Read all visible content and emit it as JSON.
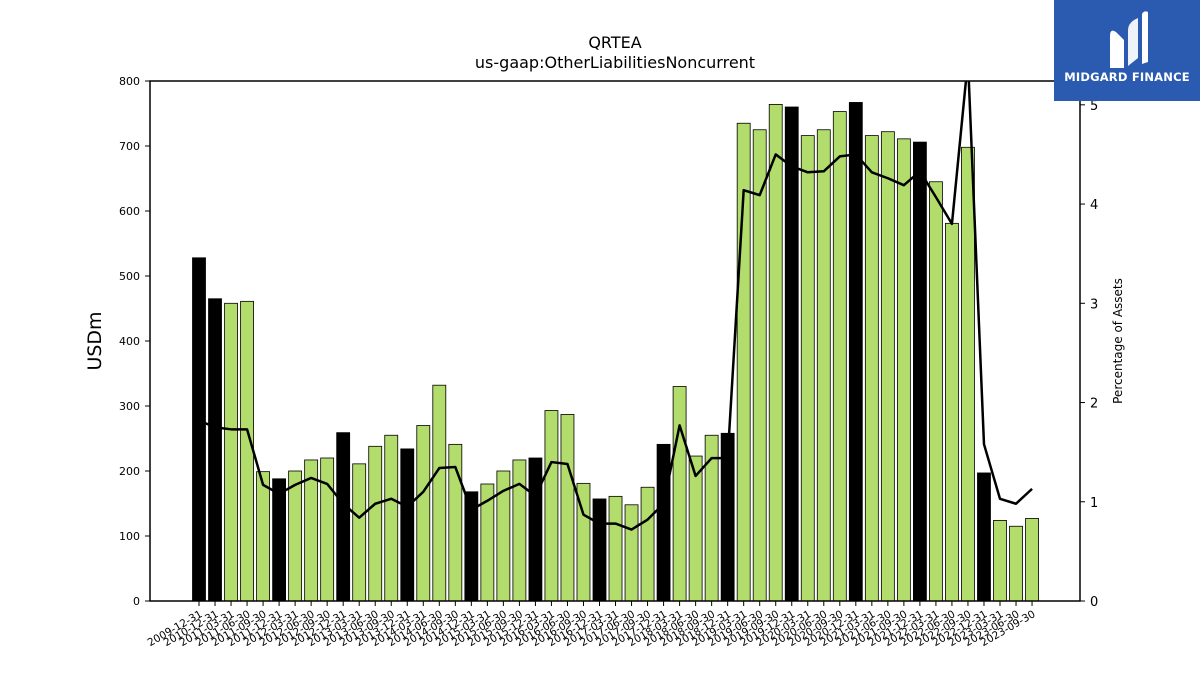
{
  "chart_data": {
    "type": "bar",
    "title": "QRTEA",
    "subtitle": "us-gaap:OtherLiabilitiesNoncurrent",
    "ylabel": "USDm",
    "y2label": "Percentage of Assets",
    "ylim": [
      0,
      800
    ],
    "y2lim": [
      0,
      5.24
    ],
    "yticks": [
      0,
      100,
      200,
      300,
      400,
      500,
      600,
      700,
      800
    ],
    "y2ticks": [
      0,
      1,
      2,
      3,
      4,
      5
    ],
    "x_tick_labels": [
      "2009-12-31",
      "2010-12-31",
      "2011-03-31",
      "2011-06-30",
      "2011-09-30",
      "2011-12-31",
      "2012-03-31",
      "2012-06-30",
      "2012-09-30",
      "2012-12-31",
      "2013-03-31",
      "2013-06-30",
      "2013-09-30",
      "2013-12-31",
      "2014-03-31",
      "2014-06-30",
      "2014-09-30",
      "2014-12-31",
      "2015-03-31",
      "2015-06-30",
      "2015-09-30",
      "2015-12-31",
      "2016-03-31",
      "2016-06-30",
      "2016-09-30",
      "2016-12-31",
      "2017-03-31",
      "2017-06-30",
      "2017-09-30",
      "2017-12-31",
      "2018-03-31",
      "2018-06-30",
      "2018-09-30",
      "2018-12-31",
      "2019-03-31",
      "2019-06-30",
      "2019-09-30",
      "2019-12-31",
      "2020-03-31",
      "2020-06-30",
      "2020-09-30",
      "2020-12-31",
      "2021-03-31",
      "2021-06-30",
      "2021-09-30",
      "2021-12-31",
      "2022-03-31",
      "2022-06-30",
      "2022-09-30",
      "2022-12-31",
      "2023-03-31",
      "2023-06-30",
      "2023-09-30"
    ],
    "annual_flags": [
      1,
      1,
      0,
      0,
      0,
      1,
      0,
      0,
      0,
      1,
      0,
      0,
      0,
      1,
      0,
      0,
      0,
      1,
      0,
      0,
      0,
      1,
      0,
      0,
      0,
      1,
      0,
      0,
      0,
      1,
      0,
      0,
      0,
      1,
      0,
      0,
      0,
      1,
      0,
      0,
      0,
      1,
      0,
      0,
      0,
      1,
      0,
      0,
      0,
      1,
      0,
      0,
      0
    ],
    "series": [
      {
        "name": "USDm",
        "values": [
          528,
          465,
          458,
          461,
          199,
          188,
          200,
          217,
          220,
          259,
          211,
          238,
          255,
          234,
          270,
          332,
          241,
          168,
          180,
          200,
          217,
          220,
          293,
          287,
          181,
          157,
          161,
          148,
          175,
          241,
          330,
          223,
          255,
          258,
          735,
          725,
          764,
          760,
          716,
          725,
          753,
          767,
          716,
          722,
          711,
          706,
          645,
          581,
          698,
          197,
          124,
          115,
          127
        ]
      },
      {
        "name": "Percentage of Assets",
        "values": [
          1.82,
          1.75,
          1.73,
          1.73,
          1.17,
          1.08,
          1.17,
          1.24,
          1.18,
          0.98,
          0.84,
          0.98,
          1.03,
          0.95,
          1.1,
          1.34,
          1.35,
          0.92,
          1.01,
          1.11,
          1.18,
          1.06,
          1.4,
          1.38,
          0.87,
          0.78,
          0.78,
          0.72,
          0.82,
          0.98,
          1.77,
          1.26,
          1.44,
          1.44,
          4.14,
          4.09,
          4.5,
          4.38,
          4.32,
          4.33,
          4.48,
          4.5,
          4.32,
          4.26,
          4.19,
          4.33,
          4.07,
          3.8,
          5.45,
          1.58,
          1.03,
          0.98,
          1.13
        ]
      }
    ],
    "colors": {
      "annual_bar": "#000000",
      "quarter_bar": "#b2dc6c",
      "line": "#000000"
    }
  },
  "logo": {
    "text": "MIDGARD FINANCE",
    "icon": "midgard-logo-icon",
    "background": "#2a5bb0"
  }
}
